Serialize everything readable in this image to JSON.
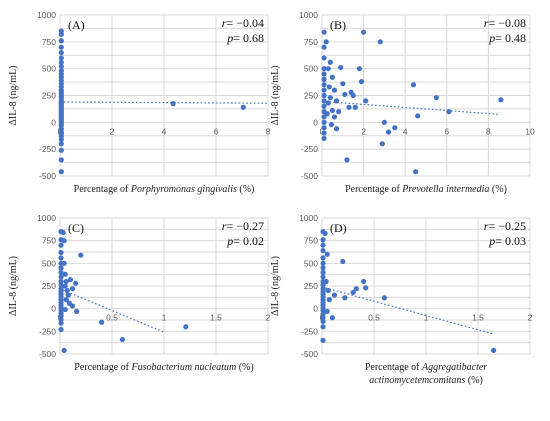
{
  "chart_data": [
    {
      "type": "scatter",
      "panel_label": "(A)",
      "r_prefix": "r",
      "r_value": "= −0.04",
      "p_prefix": "p",
      "p_value": "= 0.68",
      "ylabel": "ΔIL-8 (ng/mL)",
      "xlabel_lines": [
        [
          "Percentage of  ",
          "Porphyromonas gingivalis",
          " (%)"
        ]
      ],
      "xlim": [
        0,
        8
      ],
      "ylim": [
        -500,
        1000
      ],
      "xticks": [
        0,
        2,
        4,
        6,
        8
      ],
      "xtick_labels": [
        "0",
        "2",
        "4",
        "6",
        "8"
      ],
      "yticks": [
        -500,
        -375,
        -250,
        -125,
        0,
        125,
        250,
        375,
        500,
        625,
        750,
        875,
        1000
      ],
      "ytick_labels": [
        "-500",
        "",
        "-250",
        "",
        "0",
        "",
        "250",
        "",
        "500",
        "",
        "750",
        "",
        "1000"
      ],
      "trend": [
        [
          0,
          190
        ],
        [
          8,
          178
        ]
      ],
      "points": [
        [
          0.05,
          850
        ],
        [
          0.05,
          820
        ],
        [
          0.05,
          760
        ],
        [
          0.05,
          700
        ],
        [
          0.05,
          650
        ],
        [
          0.05,
          600
        ],
        [
          0.05,
          560
        ],
        [
          0.05,
          520
        ],
        [
          0.05,
          480
        ],
        [
          0.05,
          450
        ],
        [
          0.05,
          420
        ],
        [
          0.05,
          390
        ],
        [
          0.05,
          360
        ],
        [
          0.05,
          330
        ],
        [
          0.05,
          300
        ],
        [
          0.05,
          280
        ],
        [
          0.05,
          260
        ],
        [
          0.05,
          240
        ],
        [
          0.05,
          220
        ],
        [
          0.05,
          200
        ],
        [
          0.05,
          185
        ],
        [
          0.05,
          170
        ],
        [
          0.05,
          155
        ],
        [
          0.05,
          140
        ],
        [
          0.05,
          125
        ],
        [
          0.05,
          110
        ],
        [
          0.05,
          95
        ],
        [
          0.05,
          80
        ],
        [
          0.05,
          65
        ],
        [
          0.05,
          50
        ],
        [
          0.05,
          35
        ],
        [
          0.05,
          20
        ],
        [
          0.05,
          5
        ],
        [
          0.05,
          -10
        ],
        [
          0.05,
          -30
        ],
        [
          0.05,
          -60
        ],
        [
          0.05,
          -90
        ],
        [
          0.05,
          -110
        ],
        [
          0.05,
          -130
        ],
        [
          0.05,
          -160
        ],
        [
          0.05,
          -200
        ],
        [
          0.05,
          -260
        ],
        [
          0.05,
          -350
        ],
        [
          0.05,
          -460
        ],
        [
          4.35,
          175
        ],
        [
          7.05,
          140
        ]
      ]
    },
    {
      "type": "scatter",
      "panel_label": "(B)",
      "r_prefix": "r",
      "r_value": "= −0.08",
      "p_prefix": "p",
      "p_value": "= 0.48",
      "ylabel": "ΔIL-8 (ng/mL)",
      "xlabel_lines": [
        [
          "Percentage of  ",
          "Prevotella intermedia",
          " (%)"
        ]
      ],
      "xlim": [
        0,
        10
      ],
      "ylim": [
        -500,
        1000
      ],
      "xticks": [
        0,
        2,
        4,
        6,
        8,
        10
      ],
      "xtick_labels": [
        "0",
        "2",
        "4",
        "6",
        "8",
        "10"
      ],
      "yticks": [
        -500,
        -375,
        -250,
        -125,
        0,
        125,
        250,
        375,
        500,
        625,
        750,
        875,
        1000
      ],
      "ytick_labels": [
        "-500",
        "",
        "-250",
        "",
        "0",
        "",
        "250",
        "",
        "500",
        "",
        "750",
        "",
        "1000"
      ],
      "trend": [
        [
          0,
          195
        ],
        [
          8.5,
          75
        ]
      ],
      "points": [
        [
          0.1,
          840
        ],
        [
          0.1,
          700
        ],
        [
          0.1,
          600
        ],
        [
          0.1,
          500
        ],
        [
          0.1,
          450
        ],
        [
          0.1,
          400
        ],
        [
          0.1,
          350
        ],
        [
          0.1,
          300
        ],
        [
          0.1,
          250
        ],
        [
          0.1,
          200
        ],
        [
          0.1,
          150
        ],
        [
          0.1,
          100
        ],
        [
          0.1,
          50
        ],
        [
          0.1,
          0
        ],
        [
          0.1,
          -50
        ],
        [
          0.1,
          -100
        ],
        [
          0.1,
          -150
        ],
        [
          0.2,
          750
        ],
        [
          0.3,
          500
        ],
        [
          0.4,
          560
        ],
        [
          0.5,
          420
        ],
        [
          0.6,
          300
        ],
        [
          0.7,
          200
        ],
        [
          0.8,
          100
        ],
        [
          0.9,
          510
        ],
        [
          1.0,
          360
        ],
        [
          1.1,
          260
        ],
        [
          0.5,
          110
        ],
        [
          0.6,
          50
        ],
        [
          0.3,
          180
        ],
        [
          0.4,
          230
        ],
        [
          0.7,
          -60
        ],
        [
          1.2,
          -350
        ],
        [
          1.3,
          140
        ],
        [
          1.4,
          280
        ],
        [
          1.5,
          250
        ],
        [
          1.6,
          140
        ],
        [
          1.8,
          500
        ],
        [
          1.9,
          380
        ],
        [
          2.0,
          840
        ],
        [
          2.1,
          200
        ],
        [
          2.8,
          750
        ],
        [
          2.9,
          -200
        ],
        [
          3.0,
          0
        ],
        [
          3.2,
          -90
        ],
        [
          3.5,
          -50
        ],
        [
          4.4,
          350
        ],
        [
          4.5,
          -460
        ],
        [
          4.6,
          60
        ],
        [
          5.5,
          230
        ],
        [
          6.1,
          100
        ],
        [
          8.6,
          210
        ],
        [
          0.25,
          80
        ],
        [
          0.45,
          -20
        ],
        [
          0.35,
          330
        ]
      ]
    },
    {
      "type": "scatter",
      "panel_label": "(C)",
      "r_prefix": "r",
      "r_value": "= −0.27",
      "p_prefix": "p",
      "p_value": "= 0.02",
      "ylabel": "ΔIL-8 (ng/mL)",
      "xlabel_lines": [
        [
          "Percentage of  ",
          "Fusobacterium nucleatum",
          " (%)"
        ]
      ],
      "xlim": [
        0,
        2
      ],
      "ylim": [
        -500,
        1000
      ],
      "xticks": [
        0,
        0.5,
        1,
        1.5,
        2
      ],
      "xtick_labels": [
        "0",
        "0.5",
        "1",
        "1.5",
        "2"
      ],
      "yticks": [
        -500,
        -375,
        -250,
        -125,
        0,
        125,
        250,
        375,
        500,
        625,
        750,
        875,
        1000
      ],
      "ytick_labels": [
        "-500",
        "",
        "-250",
        "",
        "0",
        "",
        "250",
        "",
        "500",
        "",
        "750",
        "",
        "1000"
      ],
      "trend": [
        [
          0,
          220
        ],
        [
          1.0,
          -260
        ]
      ],
      "points": [
        [
          0.01,
          850
        ],
        [
          0.01,
          760
        ],
        [
          0.01,
          700
        ],
        [
          0.01,
          620
        ],
        [
          0.01,
          560
        ],
        [
          0.01,
          500
        ],
        [
          0.01,
          450
        ],
        [
          0.01,
          400
        ],
        [
          0.01,
          350
        ],
        [
          0.01,
          300
        ],
        [
          0.01,
          260
        ],
        [
          0.01,
          220
        ],
        [
          0.01,
          190
        ],
        [
          0.01,
          160
        ],
        [
          0.01,
          130
        ],
        [
          0.01,
          100
        ],
        [
          0.01,
          70
        ],
        [
          0.01,
          40
        ],
        [
          0.01,
          10
        ],
        [
          0.01,
          -20
        ],
        [
          0.01,
          -50
        ],
        [
          0.01,
          -80
        ],
        [
          0.01,
          -120
        ],
        [
          0.01,
          -160
        ],
        [
          0.01,
          -230
        ],
        [
          0.03,
          840
        ],
        [
          0.04,
          750
        ],
        [
          0.04,
          500
        ],
        [
          0.05,
          380
        ],
        [
          0.06,
          300
        ],
        [
          0.05,
          250
        ],
        [
          0.07,
          200
        ],
        [
          0.08,
          150
        ],
        [
          0.06,
          100
        ],
        [
          0.09,
          60
        ],
        [
          0.05,
          -10
        ],
        [
          0.04,
          -460
        ],
        [
          0.1,
          320
        ],
        [
          0.12,
          220
        ],
        [
          0.15,
          280
        ],
        [
          0.12,
          30
        ],
        [
          0.16,
          -30
        ],
        [
          0.2,
          590
        ],
        [
          0.4,
          -150
        ],
        [
          0.6,
          -340
        ],
        [
          1.21,
          -200
        ]
      ]
    },
    {
      "type": "scatter",
      "panel_label": "(D)",
      "r_prefix": "r",
      "r_value": "= −0.25",
      "p_prefix": "p",
      "p_value": "= 0.03",
      "ylabel": "ΔIL-8 (ng/mL)",
      "xlabel_lines": [
        [
          "Percentage of  ",
          "Aggregatibacter",
          ""
        ],
        [
          "",
          "actinomycetemcomitans",
          " (%)"
        ]
      ],
      "xlim": [
        0,
        2
      ],
      "ylim": [
        -500,
        1000
      ],
      "xticks": [
        0,
        0.5,
        1,
        1.5,
        2
      ],
      "xtick_labels": [
        "0",
        "0.5",
        "1",
        "1.5",
        "2"
      ],
      "yticks": [
        -500,
        -375,
        -250,
        -125,
        0,
        125,
        250,
        375,
        500,
        625,
        750,
        875,
        1000
      ],
      "ytick_labels": [
        "-500",
        "",
        "-250",
        "",
        "0",
        "",
        "250",
        "",
        "500",
        "",
        "750",
        "",
        "1000"
      ],
      "trend": [
        [
          0,
          240
        ],
        [
          1.65,
          -280
        ]
      ],
      "points": [
        [
          0.01,
          850
        ],
        [
          0.01,
          760
        ],
        [
          0.01,
          700
        ],
        [
          0.01,
          640
        ],
        [
          0.01,
          560
        ],
        [
          0.01,
          500
        ],
        [
          0.01,
          450
        ],
        [
          0.01,
          400
        ],
        [
          0.01,
          350
        ],
        [
          0.01,
          300
        ],
        [
          0.01,
          260
        ],
        [
          0.01,
          220
        ],
        [
          0.01,
          190
        ],
        [
          0.01,
          160
        ],
        [
          0.01,
          130
        ],
        [
          0.01,
          100
        ],
        [
          0.01,
          70
        ],
        [
          0.01,
          40
        ],
        [
          0.01,
          10
        ],
        [
          0.01,
          -20
        ],
        [
          0.01,
          -60
        ],
        [
          0.01,
          -100
        ],
        [
          0.01,
          -140
        ],
        [
          0.01,
          -200
        ],
        [
          0.01,
          -350
        ],
        [
          0.03,
          830
        ],
        [
          0.05,
          600
        ],
        [
          0.04,
          300
        ],
        [
          0.06,
          200
        ],
        [
          0.07,
          100
        ],
        [
          0.05,
          -30
        ],
        [
          0.1,
          -100
        ],
        [
          0.12,
          150
        ],
        [
          0.2,
          520
        ],
        [
          0.22,
          120
        ],
        [
          0.3,
          180
        ],
        [
          0.33,
          220
        ],
        [
          0.4,
          300
        ],
        [
          0.42,
          230
        ],
        [
          0.6,
          120
        ],
        [
          1.65,
          -460
        ]
      ]
    }
  ]
}
